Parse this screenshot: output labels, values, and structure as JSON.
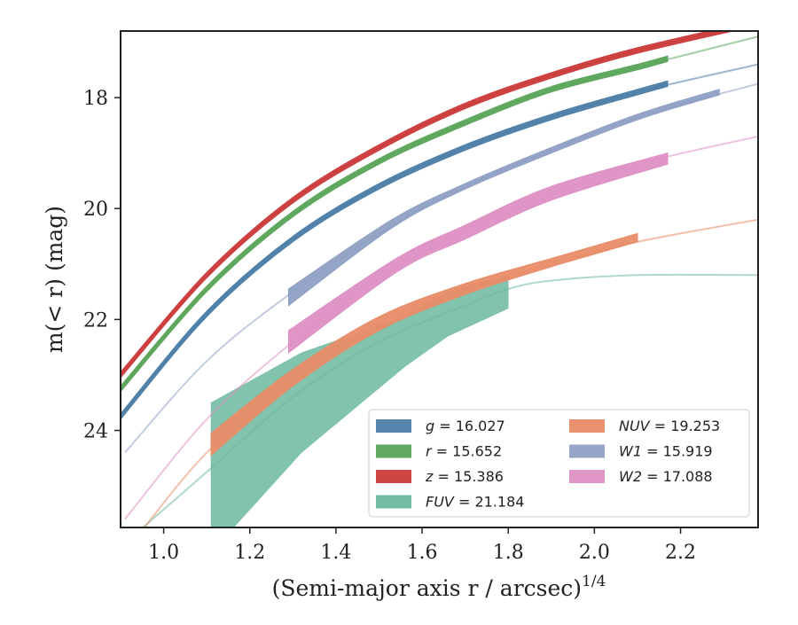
{
  "chart_data": {
    "type": "line",
    "xlabel": "(Semi-major axis r / arcsec)",
    "xlabel_exponent": "1/4",
    "ylabel": "m(< r) (mag)",
    "xlim": [
      0.9,
      2.38
    ],
    "ylim": [
      25.75,
      16.8
    ],
    "y_inverted": true,
    "grid": false,
    "legend_position": "lower-right",
    "x_ticks": [
      "1.0",
      "1.2",
      "1.4",
      "1.6",
      "1.8",
      "2.0",
      "2.2"
    ],
    "x_tick_values": [
      1.0,
      1.2,
      1.4,
      1.6,
      1.8,
      2.0,
      2.2
    ],
    "y_ticks": [
      "18",
      "20",
      "22",
      "24"
    ],
    "y_tick_values": [
      18,
      20,
      22,
      24
    ],
    "series": [
      {
        "name": "g = 16.027",
        "band": "g",
        "value": "16.027",
        "color": "#4c7ea8",
        "line": {
          "x": [
            0.9,
            1.1,
            1.3,
            1.5,
            1.7,
            1.9,
            2.1,
            2.38
          ],
          "y": [
            23.75,
            21.9,
            20.55,
            19.6,
            18.9,
            18.35,
            17.9,
            17.4
          ]
        },
        "band_fill": {
          "x": [
            0.9,
            1.1,
            1.3,
            1.5,
            1.7,
            1.9,
            2.1,
            2.17
          ],
          "y_low": [
            23.8,
            21.95,
            20.6,
            19.65,
            18.95,
            18.4,
            17.95,
            17.8
          ],
          "y_high": [
            23.7,
            21.85,
            20.5,
            19.55,
            18.85,
            18.3,
            17.85,
            17.7
          ]
        }
      },
      {
        "name": "r = 15.652",
        "band": "r",
        "value": "15.652",
        "color": "#5aa55a",
        "line": {
          "x": [
            0.9,
            1.1,
            1.3,
            1.5,
            1.7,
            1.9,
            2.1,
            2.38
          ],
          "y": [
            23.25,
            21.45,
            20.1,
            19.15,
            18.45,
            17.85,
            17.45,
            16.9
          ]
        },
        "band_fill": {
          "x": [
            0.9,
            1.1,
            1.3,
            1.5,
            1.7,
            1.9,
            2.1,
            2.17
          ],
          "y_low": [
            23.3,
            21.5,
            20.15,
            19.2,
            18.5,
            17.9,
            17.5,
            17.35
          ],
          "y_high": [
            23.2,
            21.4,
            20.05,
            19.1,
            18.4,
            17.8,
            17.4,
            17.25
          ]
        }
      },
      {
        "name": "z = 15.386",
        "band": "z",
        "value": "15.386",
        "color": "#cc3b3b",
        "line": {
          "x": [
            0.9,
            1.1,
            1.3,
            1.5,
            1.7,
            1.9,
            2.1,
            2.38
          ],
          "y": [
            23.0,
            21.2,
            19.85,
            18.9,
            18.15,
            17.6,
            17.15,
            16.65
          ]
        },
        "band_fill": {
          "x": [
            0.9,
            1.1,
            1.3,
            1.5,
            1.7,
            1.9,
            2.1,
            2.38
          ],
          "y_low": [
            23.05,
            21.25,
            19.9,
            18.95,
            18.2,
            17.65,
            17.2,
            16.7
          ],
          "y_high": [
            22.95,
            21.15,
            19.8,
            18.85,
            18.1,
            17.55,
            17.1,
            16.6
          ]
        }
      },
      {
        "name": "FUV = 21.184",
        "band": "FUV",
        "value": "21.184",
        "color": "#6cb89f",
        "line": {
          "x": [
            0.9,
            1.1,
            1.3,
            1.5,
            1.7,
            1.8,
            1.9,
            2.1,
            2.38
          ],
          "y": [
            26.1,
            24.75,
            23.4,
            22.4,
            21.75,
            21.45,
            21.3,
            21.2,
            21.2
          ]
        },
        "band_fill": {
          "x": [
            1.11,
            1.32,
            1.56,
            1.66,
            1.8
          ],
          "y_low": [
            26.2,
            24.4,
            22.85,
            22.3,
            21.8
          ],
          "y_high": [
            23.5,
            22.6,
            21.95,
            21.5,
            21.2
          ]
        }
      },
      {
        "name": "NUV = 19.253",
        "band": "NUV",
        "value": "19.253",
        "color": "#e98c68",
        "line": {
          "x": [
            0.95,
            1.1,
            1.3,
            1.5,
            1.7,
            1.9,
            2.1,
            2.38
          ],
          "y": [
            25.8,
            24.4,
            23.05,
            22.1,
            21.45,
            21.0,
            20.6,
            20.2
          ]
        },
        "band_fill": {
          "x": [
            1.11,
            1.3,
            1.5,
            1.7,
            1.9,
            2.1
          ],
          "y_low": [
            24.45,
            23.2,
            22.2,
            21.55,
            21.05,
            20.6
          ],
          "y_high": [
            24.05,
            22.9,
            21.95,
            21.35,
            20.9,
            20.45
          ]
        }
      },
      {
        "name": "W1 = 15.919",
        "band": "W1",
        "value": "15.919",
        "color": "#8fa0c4",
        "line": {
          "x": [
            0.91,
            1.1,
            1.3,
            1.5,
            1.7,
            1.9,
            2.1,
            2.38
          ],
          "y": [
            24.4,
            22.75,
            21.5,
            20.45,
            19.6,
            18.95,
            18.35,
            17.75
          ]
        },
        "band_fill": {
          "x": [
            1.29,
            1.53,
            1.7,
            1.9,
            2.1,
            2.29
          ],
          "y_low": [
            21.75,
            20.35,
            19.65,
            19.0,
            18.4,
            17.95
          ],
          "y_high": [
            21.45,
            20.2,
            19.55,
            18.9,
            18.3,
            17.85
          ]
        }
      },
      {
        "name": "W2 = 17.088",
        "band": "W2",
        "value": "17.088",
        "color": "#de8fc4",
        "line": {
          "x": [
            0.91,
            1.1,
            1.3,
            1.5,
            1.7,
            1.9,
            2.1,
            2.38
          ],
          "y": [
            25.6,
            23.8,
            22.4,
            21.25,
            20.4,
            19.75,
            19.2,
            18.7
          ]
        },
        "band_fill": {
          "x": [
            1.29,
            1.54,
            1.7,
            1.9,
            2.17
          ],
          "y_low": [
            22.6,
            21.15,
            20.55,
            19.85,
            19.2
          ],
          "y_high": [
            22.2,
            20.9,
            20.3,
            19.6,
            19.0
          ]
        }
      }
    ]
  }
}
